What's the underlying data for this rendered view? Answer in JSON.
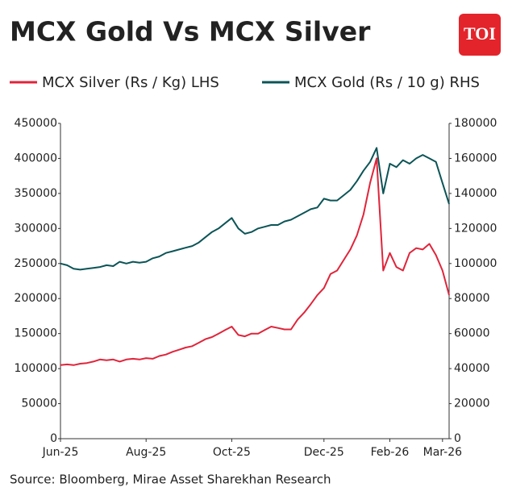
{
  "logo": "TOI",
  "chart_data": {
    "type": "line",
    "title": "MCX Gold Vs MCX Silver",
    "source": "Source: Bloomberg, Mirae Asset Sharekhan Research",
    "categories": [
      "Jun-25",
      null,
      null,
      null,
      null,
      null,
      null,
      null,
      null,
      null,
      null,
      null,
      null,
      "Aug-25",
      null,
      null,
      null,
      null,
      null,
      null,
      null,
      null,
      null,
      null,
      null,
      null,
      "Oct-25",
      null,
      null,
      null,
      null,
      null,
      null,
      null,
      null,
      null,
      null,
      null,
      null,
      null,
      "Dec-25",
      null,
      null,
      null,
      null,
      null,
      null,
      null,
      null,
      null,
      "Feb-26",
      null,
      null,
      null,
      null,
      null,
      null,
      null,
      "Mar-26",
      null
    ],
    "series": [
      {
        "name": "MCX Silver (Rs / Kg) LHS",
        "color": "#e0243a",
        "axis": "y",
        "values": [
          105000,
          106000,
          105000,
          107000,
          108000,
          110000,
          113000,
          112000,
          113000,
          110000,
          113000,
          114000,
          113000,
          115000,
          114000,
          118000,
          120000,
          124000,
          127000,
          130000,
          132000,
          137000,
          142000,
          145000,
          150000,
          155000,
          160000,
          148000,
          146000,
          150000,
          150000,
          155000,
          160000,
          158000,
          156000,
          156000,
          170000,
          180000,
          192000,
          205000,
          215000,
          235000,
          240000,
          255000,
          270000,
          290000,
          320000,
          365000,
          400000,
          240000,
          265000,
          245000,
          240000,
          265000,
          272000,
          270000,
          278000,
          262000,
          240000,
          205000
        ]
      },
      {
        "name": "MCX Gold (Rs / 10 g) RHS",
        "color": "#0b5457",
        "axis": "y2",
        "values": [
          100000,
          99000,
          97000,
          96500,
          97000,
          97500,
          98000,
          99000,
          98500,
          101000,
          100000,
          101000,
          100500,
          101000,
          103000,
          104000,
          106000,
          107000,
          108000,
          109000,
          110000,
          112000,
          115000,
          118000,
          120000,
          123000,
          126000,
          120000,
          117000,
          118000,
          120000,
          121000,
          122000,
          122000,
          124000,
          125000,
          127000,
          129000,
          131000,
          132000,
          137000,
          136000,
          136000,
          139000,
          142000,
          147000,
          153000,
          158000,
          166000,
          140000,
          157000,
          155000,
          159000,
          157000,
          160000,
          162000,
          160000,
          158000,
          146000,
          134000
        ]
      }
    ],
    "ylim": [
      0,
      450000
    ],
    "yticks": [
      0,
      50000,
      100000,
      150000,
      200000,
      250000,
      300000,
      350000,
      400000,
      450000
    ],
    "y2lim": [
      0,
      180000
    ],
    "y2ticks": [
      0,
      20000,
      40000,
      60000,
      80000,
      100000,
      120000,
      140000,
      160000,
      180000
    ],
    "grid": false
  }
}
